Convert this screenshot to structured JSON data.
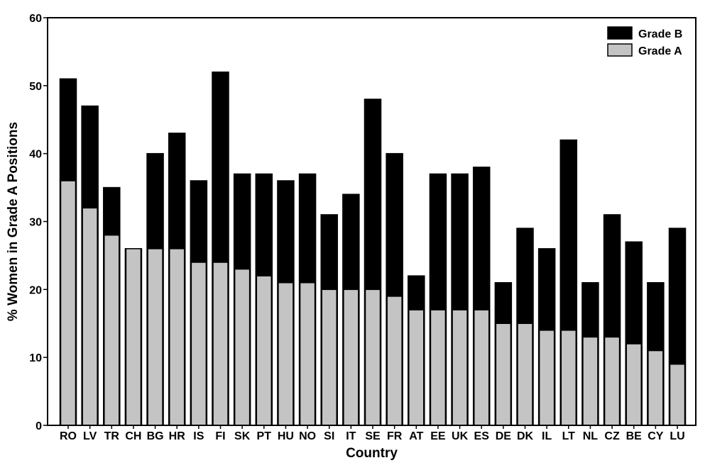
{
  "chart_data": {
    "type": "bar",
    "stacked": true,
    "xlabel": "Country",
    "ylabel": "% Women in Grade A Positions",
    "ylim": [
      0,
      60
    ],
    "yticks": [
      0,
      10,
      20,
      30,
      40,
      50,
      60
    ],
    "grid": false,
    "legend_position": "top-right",
    "categories": [
      "RO",
      "LV",
      "TR",
      "CH",
      "BG",
      "HR",
      "IS",
      "FI",
      "SK",
      "PT",
      "HU",
      "NO",
      "SI",
      "IT",
      "SE",
      "FR",
      "AT",
      "EE",
      "UK",
      "ES",
      "DE",
      "DK",
      "IL",
      "LT",
      "NL",
      "CZ",
      "BE",
      "CY",
      "LU"
    ],
    "series": [
      {
        "name": "Grade A",
        "color": "#c4c4c4",
        "values": [
          36,
          32,
          28,
          26,
          26,
          26,
          24,
          24,
          23,
          22,
          21,
          21,
          20,
          20,
          20,
          19,
          17,
          17,
          17,
          17,
          15,
          15,
          14,
          14,
          13,
          13,
          12,
          11,
          9
        ]
      },
      {
        "name": "Grade B",
        "color": "#000000",
        "totals": [
          51,
          47,
          35,
          26,
          40,
          43,
          36,
          52,
          37,
          37,
          36,
          37,
          31,
          34,
          48,
          40,
          22,
          37,
          37,
          38,
          21,
          29,
          26,
          42,
          21,
          31,
          27,
          21,
          29
        ]
      }
    ],
    "legend": [
      "Grade B",
      "Grade A"
    ]
  }
}
